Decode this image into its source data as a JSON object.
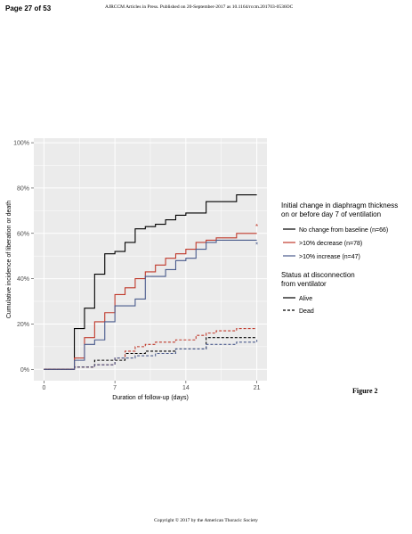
{
  "page": {
    "page_number": "Page 27 of 53",
    "header": "AJRCCM Articles in Press. Published on 20-September-2017 as 10.1164/rccm.201703-0536OC",
    "footer": "Copyright © 2017 by the American Thoracic Society",
    "figure_label": "Figure 2"
  },
  "chart_data": {
    "type": "line",
    "xlabel": "Duration of follow-up (days)",
    "ylabel": "Cumulative incidence of liberation or death",
    "xlim": [
      -1,
      22
    ],
    "ylim": [
      -0.05,
      1.02
    ],
    "x_ticks": [
      0,
      7,
      14,
      21
    ],
    "x_tick_labels": [
      "0",
      "7",
      "14",
      "21"
    ],
    "y_ticks": [
      0,
      0.2,
      0.4,
      0.6,
      0.8,
      1.0
    ],
    "y_tick_labels": [
      "0%",
      "20%",
      "40%",
      "60%",
      "80%",
      "100%"
    ],
    "grid": true,
    "background": "#ebebeb",
    "legend_position": "right",
    "legend": {
      "group_title_line1": "Initial change in diaphragm thickness",
      "group_title_line2": "on or before day 7 of ventilation",
      "groups": [
        {
          "label": "No change from baseline (n=66)",
          "color": "#000000"
        },
        {
          "label": ">10% decrease (n=78)",
          "color": "#c0392b"
        },
        {
          "label": ">10% increase (n=47)",
          "color": "#4a5b8c"
        }
      ],
      "status_title_line1": "Status at disconnection",
      "status_title_line2": "from ventilator",
      "statuses": [
        {
          "label": "Alive",
          "dash": "solid"
        },
        {
          "label": "Dead",
          "dash": "dashed"
        }
      ]
    },
    "annotations": [
      {
        "text": "*",
        "x": 21,
        "y": 0.63,
        "color": "#c0392b"
      },
      {
        "text": "*",
        "x": 21,
        "y": 0.55,
        "color": "#4a5b8c"
      }
    ],
    "series": [
      {
        "name": "No change from baseline (n=66)",
        "status": "Alive",
        "color": "#000000",
        "dash": "solid",
        "x": [
          0,
          3,
          4,
          5,
          6,
          7,
          8,
          9,
          10,
          11,
          12,
          13,
          14,
          15,
          16,
          19,
          21
        ],
        "y": [
          0,
          0.18,
          0.27,
          0.42,
          0.51,
          0.52,
          0.56,
          0.62,
          0.63,
          0.64,
          0.66,
          0.68,
          0.69,
          0.69,
          0.74,
          0.77,
          0.77
        ]
      },
      {
        "name": ">10% decrease (n=78)",
        "status": "Alive",
        "color": "#c0392b",
        "dash": "solid",
        "x": [
          0,
          3,
          4,
          5,
          6,
          7,
          8,
          9,
          10,
          11,
          12,
          13,
          14,
          15,
          16,
          17,
          19,
          21
        ],
        "y": [
          0,
          0.05,
          0.14,
          0.21,
          0.25,
          0.33,
          0.36,
          0.4,
          0.43,
          0.46,
          0.49,
          0.51,
          0.53,
          0.56,
          0.57,
          0.58,
          0.6,
          0.6
        ]
      },
      {
        "name": ">10% increase (n=47)",
        "status": "Alive",
        "color": "#4a5b8c",
        "dash": "solid",
        "x": [
          0,
          3,
          4,
          5,
          6,
          7,
          8,
          9,
          10,
          11,
          12,
          13,
          14,
          15,
          16,
          17,
          19,
          21
        ],
        "y": [
          0,
          0.04,
          0.11,
          0.13,
          0.21,
          0.28,
          0.28,
          0.31,
          0.41,
          0.41,
          0.44,
          0.48,
          0.49,
          0.53,
          0.56,
          0.57,
          0.57,
          0.57
        ]
      },
      {
        "name": "No change from baseline (n=66)",
        "status": "Dead",
        "color": "#000000",
        "dash": "dashed",
        "x": [
          0,
          3,
          5,
          7,
          8,
          10,
          13,
          16,
          19,
          21
        ],
        "y": [
          0,
          0.01,
          0.04,
          0.04,
          0.07,
          0.08,
          0.09,
          0.14,
          0.14,
          0.14
        ]
      },
      {
        "name": ">10% decrease (n=78)",
        "status": "Dead",
        "color": "#c0392b",
        "dash": "dashed",
        "x": [
          0,
          3,
          5,
          7,
          8,
          9,
          10,
          11,
          13,
          15,
          16,
          17,
          19,
          21
        ],
        "y": [
          0,
          0.01,
          0.02,
          0.05,
          0.08,
          0.1,
          0.11,
          0.12,
          0.13,
          0.15,
          0.16,
          0.17,
          0.18,
          0.18
        ]
      },
      {
        "name": ">10% increase (n=47)",
        "status": "Dead",
        "color": "#4a5b8c",
        "dash": "dashed",
        "x": [
          0,
          3,
          5,
          7,
          9,
          11,
          13,
          16,
          19,
          21
        ],
        "y": [
          0,
          0.01,
          0.02,
          0.05,
          0.06,
          0.07,
          0.09,
          0.11,
          0.12,
          0.13
        ]
      }
    ]
  }
}
